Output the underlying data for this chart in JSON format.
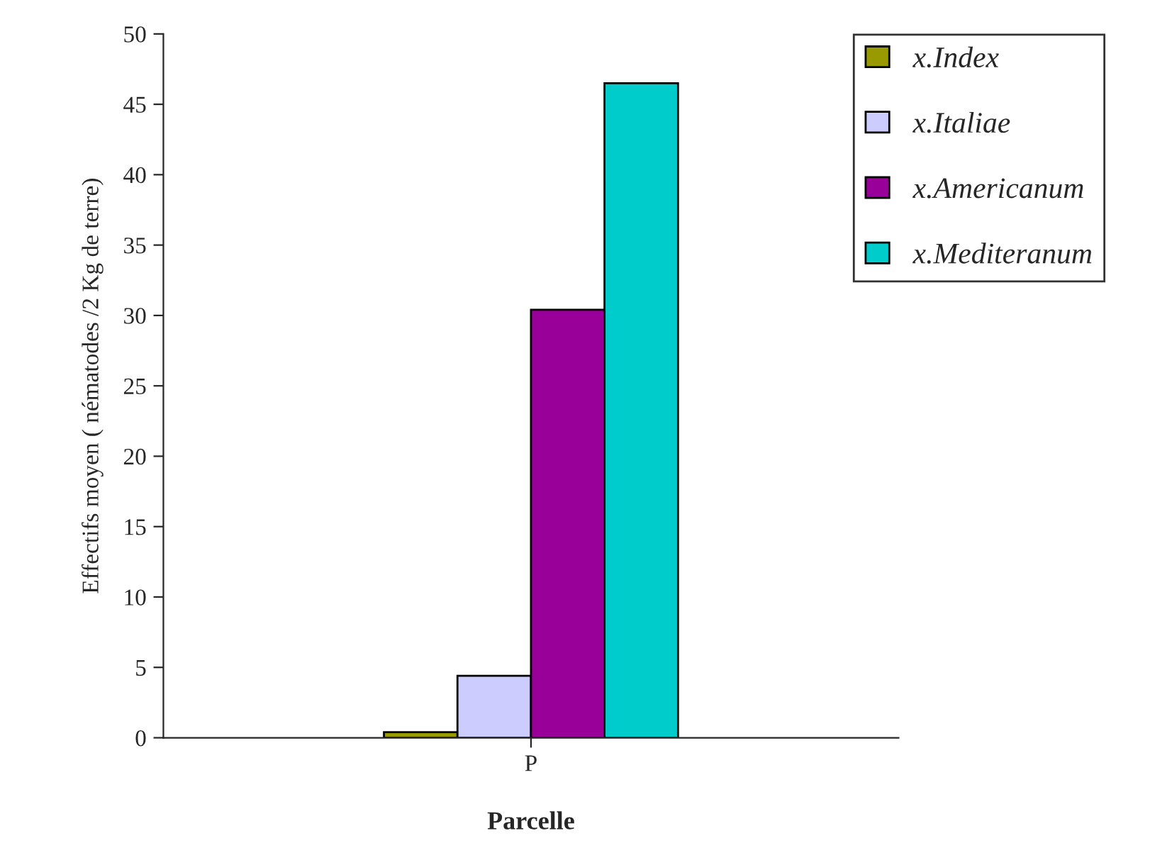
{
  "chart_data": {
    "type": "bar",
    "xlabel": "Parcelle",
    "ylabel": "Effectifs moyen ( nématodes /2 Kg de terre)",
    "categories": [
      "P"
    ],
    "series": [
      {
        "name": "x.Index",
        "color": "#999900",
        "values": [
          0.4
        ]
      },
      {
        "name": "x.Italiae",
        "color": "#ccccff",
        "values": [
          4.4
        ]
      },
      {
        "name": "x.Americanum",
        "color": "#990099",
        "values": [
          30.4
        ]
      },
      {
        "name": "x.Mediteranum",
        "color": "#00cccc",
        "values": [
          46.5
        ]
      }
    ],
    "ylim": [
      0,
      50
    ],
    "yticks": [
      0,
      5,
      10,
      15,
      20,
      25,
      30,
      35,
      40,
      45,
      50
    ],
    "grid": false,
    "legend": "top right"
  }
}
